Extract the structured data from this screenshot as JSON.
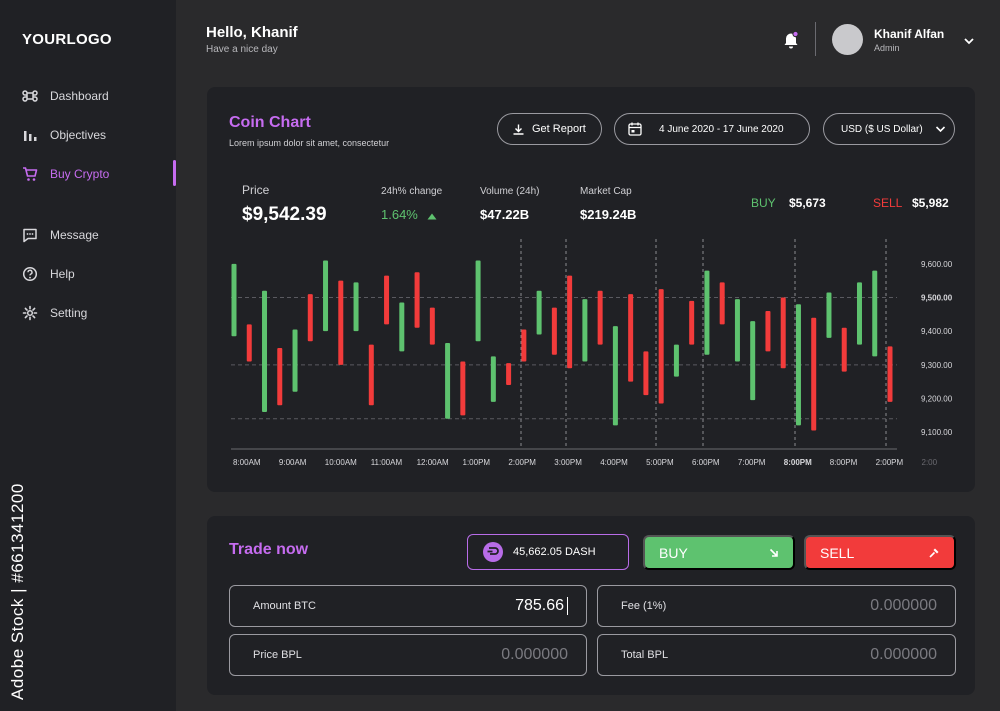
{
  "sidebar": {
    "logo": "YOURLOGO",
    "items": [
      {
        "label": "Dashboard",
        "icon": "command-icon"
      },
      {
        "label": "Objectives",
        "icon": "bar-chart-icon"
      },
      {
        "label": "Buy Crypto",
        "icon": "cart-icon",
        "active": true
      },
      {
        "label": "Message",
        "icon": "message-icon"
      },
      {
        "label": "Help",
        "icon": "help-icon"
      },
      {
        "label": "Setting",
        "icon": "gear-icon"
      }
    ],
    "active_color": "#c66cf0"
  },
  "watermark": "Adobe Stock | #661341200",
  "header": {
    "greeting": "Hello, Khanif",
    "subtitle": "Have a nice  day",
    "user_name": "Khanif Alfan",
    "user_role": "Admin"
  },
  "coin_chart": {
    "title": "Coin Chart",
    "subtitle": "Lorem ipsum dolor sit amet, consectetur",
    "get_report_label": "Get Report",
    "date_range": "4 June 2020 - 17 June 2020",
    "currency": "USD ($ US Dollar)",
    "price_label": "Price",
    "price_value": "$9,542.39",
    "change_label": "24h% change",
    "change_value": "1.64%",
    "volume_label": "Volume (24h)",
    "volume_value": "$47.22B",
    "market_cap_label": "Market Cap",
    "market_cap_value": "$219.24B",
    "buy_label": "BUY",
    "buy_value": "$5,673",
    "sell_label": "SELL",
    "sell_value": "$5,982"
  },
  "chart_data": {
    "type": "candlestick",
    "x_ticks": [
      "8:00AM",
      "9:00AM",
      "10:00AM",
      "11:00AM",
      "12:00AM",
      "1:00PM",
      "2:00PM",
      "3:00PM",
      "4:00PM",
      "5:00PM",
      "6:00PM",
      "7:00PM",
      "8:00PM",
      "8:00PM",
      "2:00PM",
      "2:00"
    ],
    "y_ticks": [
      "9,600.00",
      "9,500.00",
      "9,400.00",
      "9,300.00",
      "9,200.00",
      "9,100.00"
    ],
    "y_values": [
      9600,
      9500,
      9400,
      9300,
      9200,
      9100
    ],
    "ylim": [
      9050,
      9650
    ],
    "bold_y_tick": "9,500.00",
    "bold_x_tick_index": 12,
    "up_color": "#5ec26f",
    "down_color": "#f23b3b",
    "candles": [
      {
        "low": 9385,
        "high": 9600,
        "dir": "up"
      },
      {
        "low": 9310,
        "high": 9420,
        "dir": "down"
      },
      {
        "low": 9160,
        "high": 9520,
        "dir": "up"
      },
      {
        "low": 9180,
        "high": 9350,
        "dir": "down"
      },
      {
        "low": 9220,
        "high": 9405,
        "dir": "up"
      },
      {
        "low": 9370,
        "high": 9510,
        "dir": "down"
      },
      {
        "low": 9400,
        "high": 9610,
        "dir": "up"
      },
      {
        "low": 9300,
        "high": 9550,
        "dir": "down"
      },
      {
        "low": 9400,
        "high": 9545,
        "dir": "up"
      },
      {
        "low": 9180,
        "high": 9360,
        "dir": "down"
      },
      {
        "low": 9420,
        "high": 9565,
        "dir": "down"
      },
      {
        "low": 9340,
        "high": 9485,
        "dir": "up"
      },
      {
        "low": 9410,
        "high": 9575,
        "dir": "down"
      },
      {
        "low": 9360,
        "high": 9470,
        "dir": "down"
      },
      {
        "low": 9140,
        "high": 9365,
        "dir": "up"
      },
      {
        "low": 9150,
        "high": 9310,
        "dir": "down"
      },
      {
        "low": 9370,
        "high": 9610,
        "dir": "up"
      },
      {
        "low": 9190,
        "high": 9325,
        "dir": "up"
      },
      {
        "low": 9240,
        "high": 9305,
        "dir": "down"
      },
      {
        "low": 9310,
        "high": 9405,
        "dir": "down"
      },
      {
        "low": 9390,
        "high": 9520,
        "dir": "up"
      },
      {
        "low": 9330,
        "high": 9470,
        "dir": "down"
      },
      {
        "low": 9290,
        "high": 9565,
        "dir": "down"
      },
      {
        "low": 9310,
        "high": 9495,
        "dir": "up"
      },
      {
        "low": 9360,
        "high": 9520,
        "dir": "down"
      },
      {
        "low": 9120,
        "high": 9415,
        "dir": "up"
      },
      {
        "low": 9250,
        "high": 9510,
        "dir": "down"
      },
      {
        "low": 9210,
        "high": 9340,
        "dir": "down"
      },
      {
        "low": 9185,
        "high": 9525,
        "dir": "down"
      },
      {
        "low": 9265,
        "high": 9360,
        "dir": "up"
      },
      {
        "low": 9360,
        "high": 9490,
        "dir": "down"
      },
      {
        "low": 9330,
        "high": 9580,
        "dir": "up"
      },
      {
        "low": 9420,
        "high": 9545,
        "dir": "down"
      },
      {
        "low": 9310,
        "high": 9495,
        "dir": "up"
      },
      {
        "low": 9195,
        "high": 9430,
        "dir": "up"
      },
      {
        "low": 9340,
        "high": 9460,
        "dir": "down"
      },
      {
        "low": 9290,
        "high": 9500,
        "dir": "down"
      },
      {
        "low": 9120,
        "high": 9480,
        "dir": "up"
      },
      {
        "low": 9105,
        "high": 9440,
        "dir": "down"
      },
      {
        "low": 9380,
        "high": 9515,
        "dir": "up"
      },
      {
        "low": 9280,
        "high": 9410,
        "dir": "down"
      },
      {
        "low": 9360,
        "high": 9545,
        "dir": "up"
      },
      {
        "low": 9325,
        "high": 9580,
        "dir": "up"
      },
      {
        "low": 9190,
        "high": 9355,
        "dir": "down"
      }
    ]
  },
  "trade": {
    "title": "Trade now",
    "balance": "45,662.05 DASH",
    "buy_label": "BUY",
    "sell_label": "SELL",
    "buy_color": "#5ec26f",
    "sell_color": "#f23b3b",
    "amount_label": "Amount BTC",
    "amount_value": "785.66",
    "fee_label": "Fee (1%)",
    "fee_value": "0.000000",
    "price_label": "Price BPL",
    "price_value": "0.000000",
    "total_label": "Total BPL",
    "total_value": "0.000000"
  }
}
